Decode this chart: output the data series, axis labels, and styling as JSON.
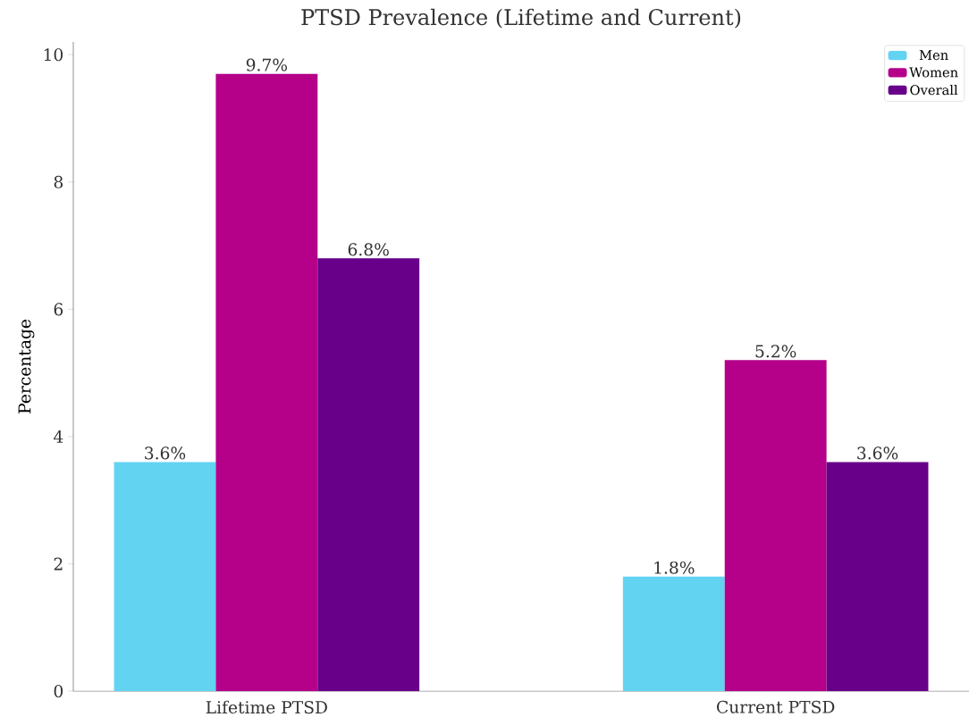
{
  "chart_data": {
    "type": "bar",
    "title": "PTSD Prevalence (Lifetime and Current)",
    "ylabel": "Percentage",
    "categories": [
      "Lifetime PTSD",
      "Current PTSD"
    ],
    "series": [
      {
        "name": "Men",
        "color": "#63d3f2",
        "values": [
          3.6,
          1.8
        ],
        "value_labels": [
          "3.6%",
          "1.8%"
        ]
      },
      {
        "name": "Women",
        "color": "#b5008a",
        "values": [
          9.7,
          5.2
        ],
        "value_labels": [
          "9.7%",
          "5.2%"
        ]
      },
      {
        "name": "Overall",
        "color": "#680089",
        "values": [
          6.8,
          3.6
        ],
        "value_labels": [
          "6.8%",
          "3.6%"
        ]
      }
    ],
    "ylim": [
      0,
      10.2
    ],
    "yticks": [
      0,
      2,
      4,
      6,
      8,
      10
    ],
    "grid": false,
    "legend": "top right"
  }
}
